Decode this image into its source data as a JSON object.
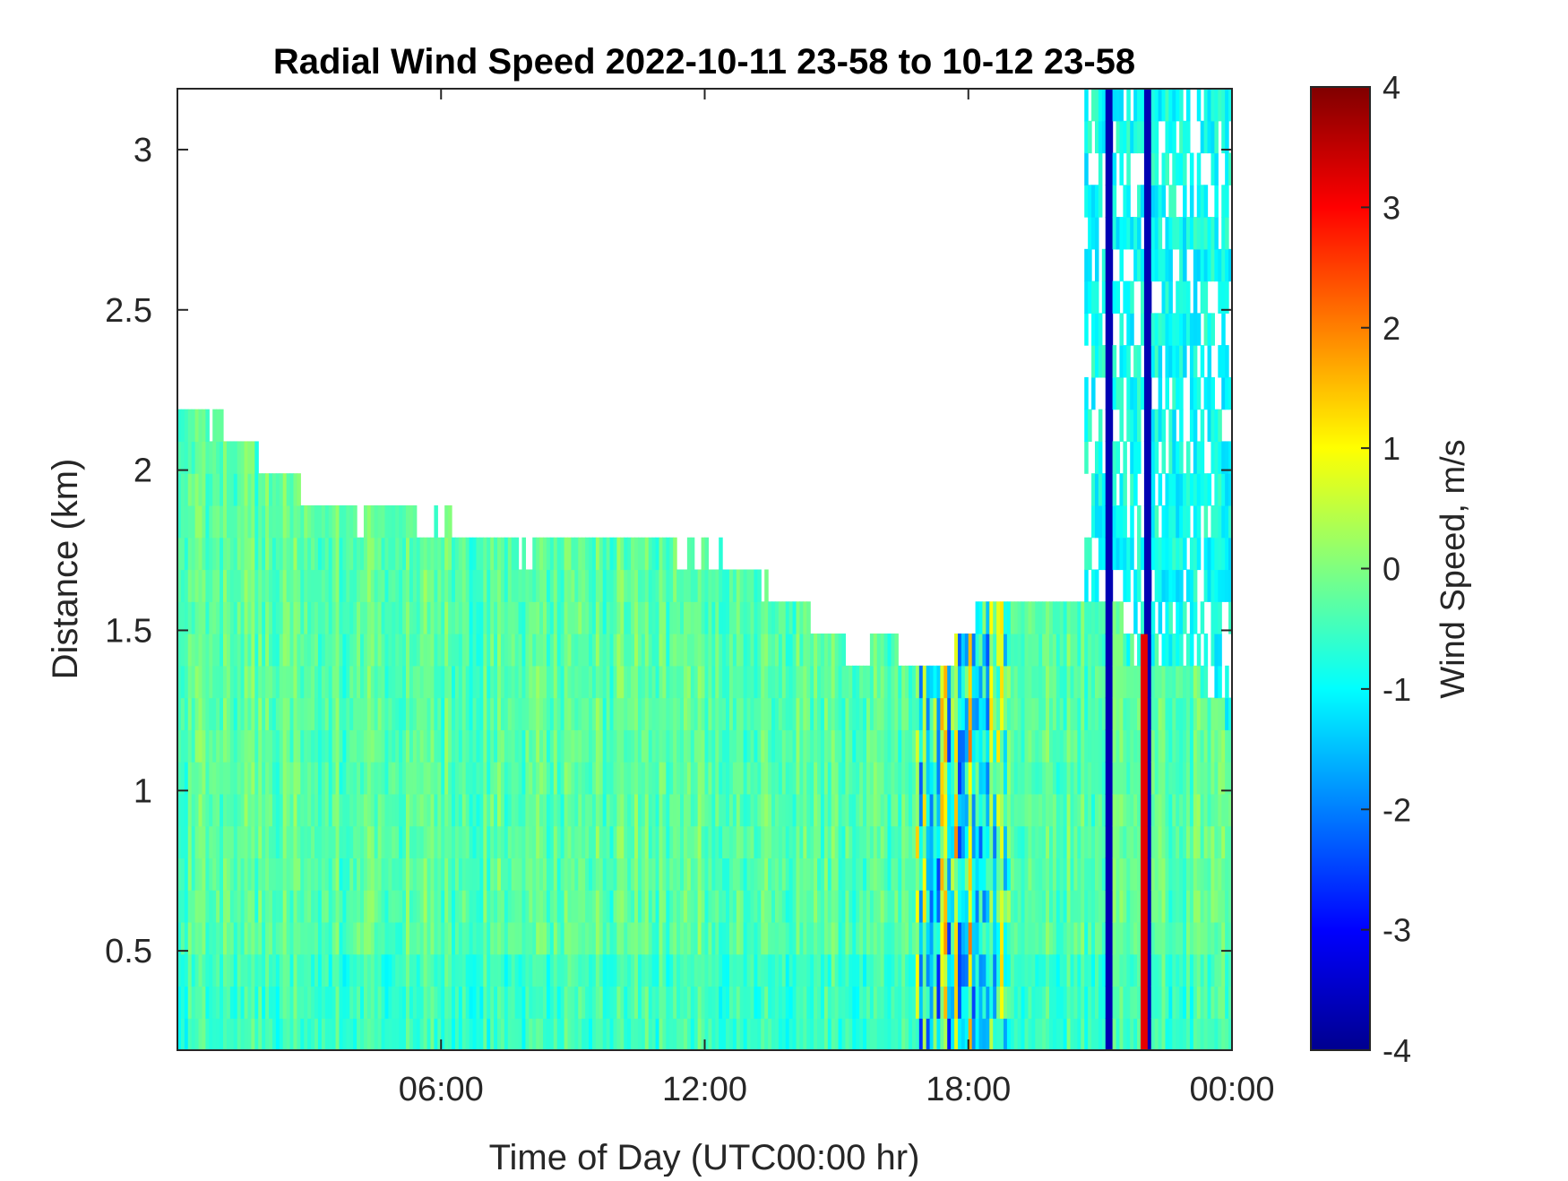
{
  "chart_data": {
    "type": "heatmap",
    "title": "Radial Wind Speed 2022-10-11 23-58 to 10-12 23-58",
    "xlabel": "Time of Day (UTC00:00 hr)",
    "ylabel": "Distance (km)",
    "colorbar_label": "Wind Speed, m/s",
    "colormap": "jet",
    "xlim_hours": [
      0,
      24
    ],
    "ylim_km": [
      0.19,
      3.19
    ],
    "clim": [
      -4,
      4
    ],
    "x_ticks": [
      {
        "value": 6,
        "label": "06:00"
      },
      {
        "value": 12,
        "label": "12:00"
      },
      {
        "value": 18,
        "label": "18:00"
      },
      {
        "value": 24,
        "label": "00:00"
      }
    ],
    "y_ticks": [
      {
        "value": 0.5,
        "label": "0.5"
      },
      {
        "value": 1,
        "label": "1"
      },
      {
        "value": 1.5,
        "label": "1.5"
      },
      {
        "value": 2,
        "label": "2"
      },
      {
        "value": 2.5,
        "label": "2.5"
      },
      {
        "value": 3,
        "label": "3"
      }
    ],
    "colorbar_ticks": [
      {
        "value": 4,
        "label": "4"
      },
      {
        "value": 3,
        "label": "3"
      },
      {
        "value": 2,
        "label": "2"
      },
      {
        "value": 1,
        "label": "1"
      },
      {
        "value": 0,
        "label": "0"
      },
      {
        "value": -1,
        "label": "-1"
      },
      {
        "value": -2,
        "label": "-2"
      },
      {
        "value": -3,
        "label": "-3"
      },
      {
        "value": -4,
        "label": "-4"
      }
    ],
    "data_top_profile": [
      {
        "t": 0.0,
        "top_km": 2.15
      },
      {
        "t": 0.5,
        "top_km": 2.18
      },
      {
        "t": 1.2,
        "top_km": 2.1
      },
      {
        "t": 2.0,
        "top_km": 2.02
      },
      {
        "t": 3.0,
        "top_km": 1.92
      },
      {
        "t": 4.0,
        "top_km": 1.84
      },
      {
        "t": 5.0,
        "top_km": 1.86
      },
      {
        "t": 6.0,
        "top_km": 1.83
      },
      {
        "t": 7.0,
        "top_km": 1.8
      },
      {
        "t": 7.8,
        "top_km": 1.74
      },
      {
        "t": 9.0,
        "top_km": 1.78
      },
      {
        "t": 10.0,
        "top_km": 1.8
      },
      {
        "t": 11.0,
        "top_km": 1.78
      },
      {
        "t": 12.0,
        "top_km": 1.74
      },
      {
        "t": 13.0,
        "top_km": 1.68
      },
      {
        "t": 14.0,
        "top_km": 1.58
      },
      {
        "t": 15.0,
        "top_km": 1.46
      },
      {
        "t": 15.6,
        "top_km": 1.4
      },
      {
        "t": 16.0,
        "top_km": 1.48
      },
      {
        "t": 16.5,
        "top_km": 1.44
      },
      {
        "t": 17.0,
        "top_km": 1.38
      },
      {
        "t": 17.6,
        "top_km": 1.4
      },
      {
        "t": 18.0,
        "top_km": 1.55
      },
      {
        "t": 19.0,
        "top_km": 1.6
      },
      {
        "t": 20.0,
        "top_km": 1.58
      },
      {
        "t": 20.9,
        "top_km": 1.62
      },
      {
        "t": 21.0,
        "top_km": 1.56
      },
      {
        "t": 21.5,
        "top_km": 1.56
      },
      {
        "t": 21.6,
        "top_km": 1.45
      },
      {
        "t": 22.0,
        "top_km": 1.44
      },
      {
        "t": 23.0,
        "top_km": 1.4
      },
      {
        "t": 23.5,
        "top_km": 1.3
      },
      {
        "t": 24.0,
        "top_km": 1.2
      }
    ],
    "sparse_upper_region_hours": [
      20.6,
      24.0
    ],
    "strong_negative_bands_hours": [
      21.2,
      22.1
    ],
    "positive_band_hours": [
      22.0
    ]
  }
}
